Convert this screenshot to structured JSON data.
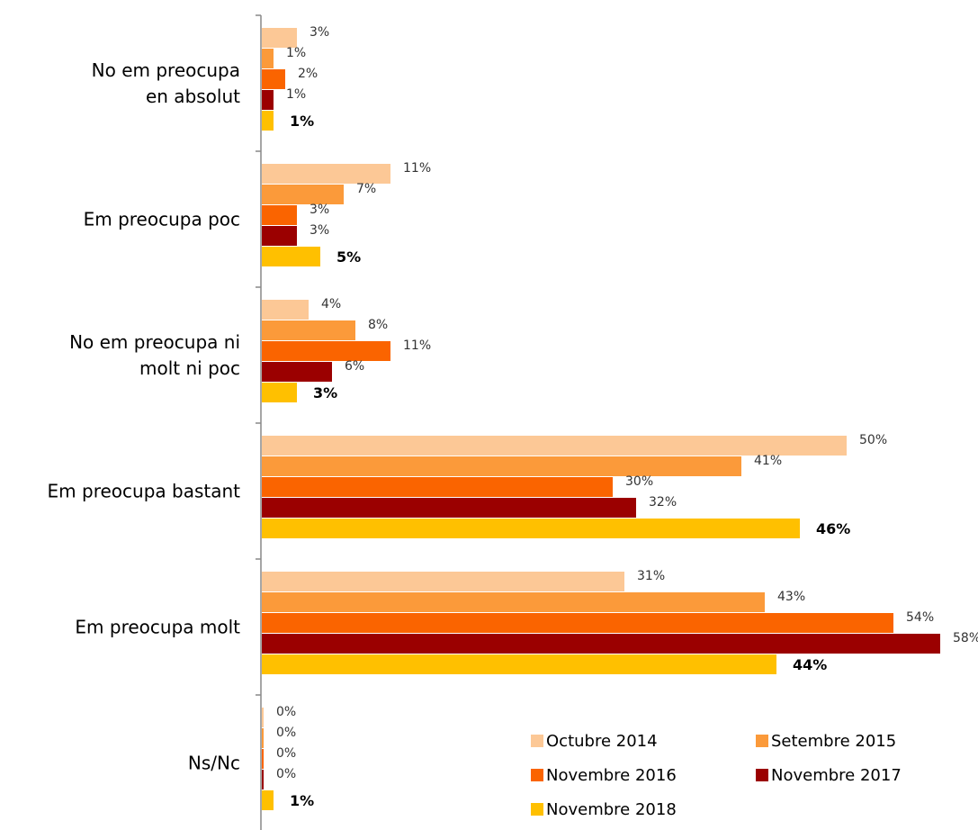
{
  "chart_data": {
    "type": "bar",
    "orientation": "horizontal",
    "categories": [
      [
        "No em preocupa",
        "en absolut"
      ],
      [
        "Em preocupa poc"
      ],
      [
        "No em preocupa ni",
        "molt ni poc"
      ],
      [
        "Em preocupa bastant"
      ],
      [
        "Em preocupa molt"
      ],
      [
        "Ns/Nc"
      ]
    ],
    "series": [
      {
        "name": "Octubre 2014",
        "color": "#FCC896",
        "values": [
          3,
          11,
          4,
          50,
          31,
          0
        ],
        "labels": [
          "3%",
          "11%",
          "4%",
          "50%",
          "31%",
          "0%"
        ]
      },
      {
        "name": "Setembre 2015",
        "color": "#FB9A3A",
        "values": [
          1,
          7,
          8,
          41,
          43,
          0
        ],
        "labels": [
          "1%",
          "7%",
          "8%",
          "41%",
          "43%",
          "0%"
        ]
      },
      {
        "name": "Novembre 2016",
        "color": "#FA6400",
        "values": [
          2,
          3,
          11,
          30,
          54,
          0
        ],
        "labels": [
          "2%",
          "3%",
          "11%",
          "30%",
          "54%",
          "0%"
        ]
      },
      {
        "name": "Novembre 2017",
        "color": "#9B0000",
        "values": [
          1,
          3,
          6,
          32,
          58,
          0
        ],
        "labels": [
          "1%",
          "3%",
          "6%",
          "32%",
          "58%",
          "0%"
        ]
      },
      {
        "name": "Novembre 2018",
        "color": "#FFC000",
        "values": [
          1,
          5,
          3,
          46,
          44,
          1
        ],
        "labels": [
          "1%",
          "5%",
          "3%",
          "46%",
          "44%",
          "1%"
        ],
        "bold_labels": true
      }
    ],
    "xlim": [
      0,
      60
    ],
    "grid": false,
    "legend": {
      "placement": "bottom-right",
      "columns": 2
    }
  }
}
